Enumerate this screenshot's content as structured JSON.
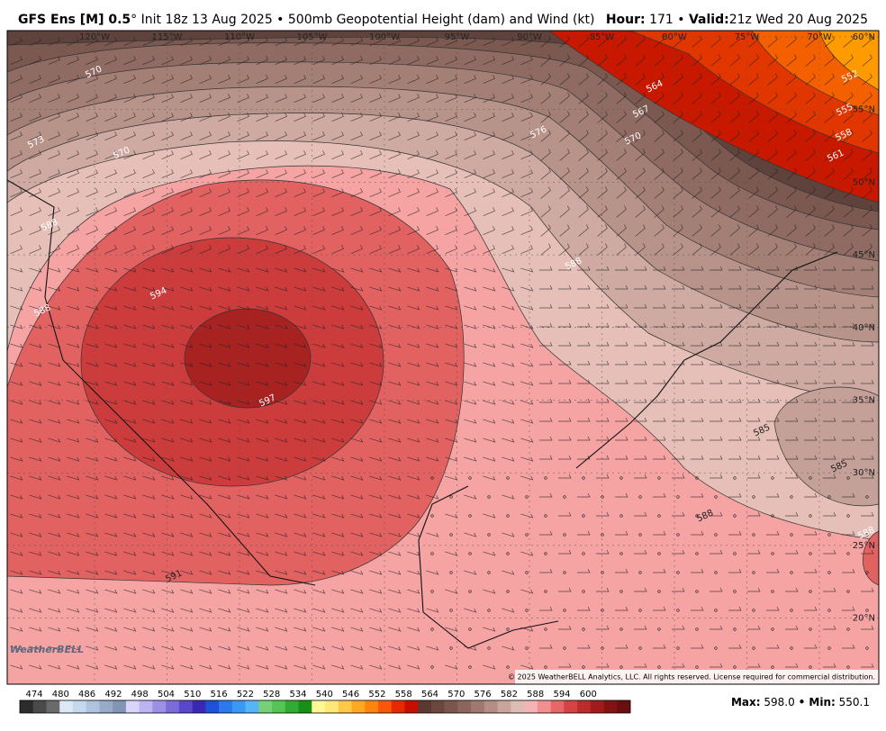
{
  "header": {
    "model": "GFS Ens [M] 0.5",
    "details": "° Init 18z 13 Aug 2025 • 500mb Geopotential Height (dam) and Wind (kt)",
    "hour_label": "Hour:",
    "hour_value": "171 •",
    "valid_label": "Valid:",
    "valid_value": "21z Wed 20 Aug 2025"
  },
  "map": {
    "longitudes": [
      "120°W",
      "115°W",
      "110°W",
      "105°W",
      "100°W",
      "95°W",
      "90°W",
      "85°W",
      "80°W",
      "75°W",
      "70°W"
    ],
    "latitudes": [
      "60°N",
      "55°N",
      "50°N",
      "45°N",
      "40°N",
      "35°N",
      "30°N",
      "25°N",
      "20°N"
    ],
    "contour_labels": [
      "570",
      "573",
      "570",
      "564",
      "567",
      "570",
      "576",
      "552",
      "555",
      "558",
      "561",
      "588",
      "594",
      "597",
      "591",
      "585",
      "588",
      "588",
      "585",
      "588",
      "588"
    ],
    "logo": "WeatherBELL",
    "copyright": "© 2025 WeatherBELL Analytics, LLC. All rights reserved. License required for commercial distribution."
  },
  "colorbar": {
    "labels": [
      "474",
      "480",
      "486",
      "492",
      "498",
      "504",
      "510",
      "516",
      "522",
      "528",
      "534",
      "540",
      "546",
      "552",
      "558",
      "564",
      "570",
      "576",
      "582",
      "588",
      "594",
      "600"
    ],
    "colors": [
      "#2c2c2c",
      "#4a4a4a",
      "#6a6a6a",
      "#dce8f6",
      "#c4d8ee",
      "#aec4de",
      "#98aac8",
      "#8494b4",
      "#d8d4fa",
      "#bcb4f2",
      "#9c90e4",
      "#7c6cd8",
      "#5a48c8",
      "#3a28b4",
      "#1e50d8",
      "#2c78ec",
      "#3c98f4",
      "#58b4f4",
      "#78d078",
      "#54c454",
      "#34aa34",
      "#189018",
      "#fff79a",
      "#ffe878",
      "#ffc848",
      "#ffa828",
      "#ff8410",
      "#f85808",
      "#e42a00",
      "#c40e00",
      "#5c3832",
      "#6c4640",
      "#7c564e",
      "#8c665e",
      "#a07870",
      "#b48e86",
      "#c8a49c",
      "#dcbcb4",
      "#f2b4b4",
      "#f09090",
      "#e46868",
      "#d44444",
      "#bc2c2c",
      "#a01c1c",
      "#801414",
      "#681010"
    ]
  },
  "stats": {
    "max_label": "Max:",
    "max_value": "598.0",
    "min_label": "• Min:",
    "min_value": "550.1"
  }
}
